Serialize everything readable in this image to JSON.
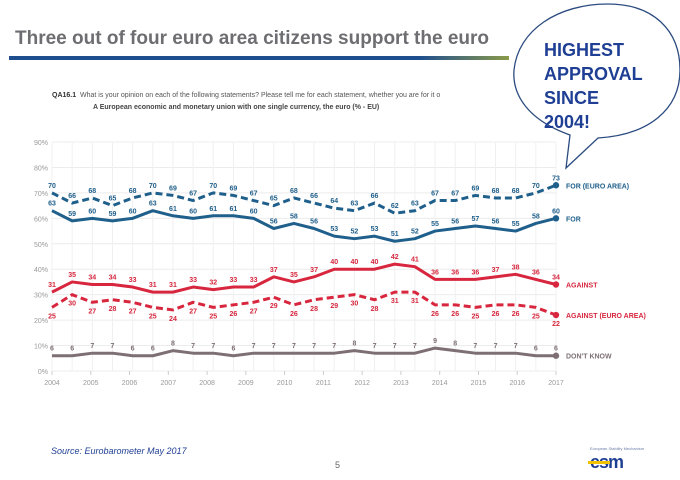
{
  "slide": {
    "title": "Three out of four euro area citizens support the euro",
    "question_code": "QA16.1",
    "question_text": "What is your opinion on each of the following statements? Please tell me for each statement, whether you are for it o",
    "subtitle": "A European economic and monetary union with one single currency, the euro (% - EU)",
    "callout": [
      "HIGHEST",
      "APPROVAL",
      "SINCE",
      "2004!"
    ],
    "source": "Source: Eurobarometer May 2017",
    "page_number": "5",
    "logo": {
      "caption": "European Stability Mechanism",
      "text": "esm"
    }
  },
  "chart_data": {
    "type": "line",
    "title": "A European economic and monetary union with one single currency, the euro (% - EU)",
    "xlabel": "",
    "ylabel": "",
    "ylim": [
      0,
      90
    ],
    "yticks": [
      "0%",
      "10%",
      "20%",
      "30%",
      "40%",
      "50%",
      "60%",
      "70%",
      "80%",
      "90%"
    ],
    "xticks": [
      "2004",
      "2005",
      "2006",
      "2007",
      "2008",
      "2009",
      "2010",
      "2011",
      "2012",
      "2013",
      "2014",
      "2015",
      "2016",
      "2017"
    ],
    "grid": true,
    "legend": "right-end-labels",
    "series": [
      {
        "name": "FOR (EURO AREA)",
        "color": "#1f5f8b",
        "dashed": true,
        "values": [
          70,
          66,
          68,
          65,
          68,
          70,
          69,
          67,
          70,
          69,
          67,
          65,
          68,
          66,
          64,
          63,
          66,
          62,
          63,
          67,
          67,
          69,
          68,
          68,
          70,
          73
        ]
      },
      {
        "name": "FOR",
        "color": "#1f5f8b",
        "dashed": false,
        "values": [
          63,
          59,
          60,
          59,
          60,
          63,
          61,
          60,
          61,
          61,
          60,
          56,
          58,
          56,
          53,
          52,
          53,
          51,
          52,
          55,
          56,
          57,
          56,
          55,
          58,
          60
        ]
      },
      {
        "name": "AGAINST",
        "color": "#d7263d",
        "dashed": false,
        "values": [
          31,
          35,
          34,
          34,
          33,
          31,
          31,
          33,
          32,
          33,
          33,
          37,
          35,
          37,
          40,
          40,
          40,
          42,
          41,
          36,
          36,
          36,
          37,
          38,
          36,
          34
        ]
      },
      {
        "name": "AGAINST (EURO AREA)",
        "color": "#d7263d",
        "dashed": true,
        "values": [
          25,
          30,
          27,
          28,
          27,
          25,
          24,
          27,
          25,
          26,
          27,
          29,
          26,
          28,
          29,
          30,
          28,
          31,
          31,
          26,
          26,
          25,
          26,
          26,
          25,
          22
        ]
      },
      {
        "name": "DON'T KNOW",
        "color": "#7d6f73",
        "dashed": false,
        "values": [
          6,
          6,
          7,
          7,
          6,
          6,
          8,
          7,
          7,
          6,
          7,
          7,
          7,
          7,
          7,
          8,
          7,
          7,
          7,
          9,
          8,
          7,
          7,
          7,
          6,
          6
        ]
      }
    ]
  }
}
